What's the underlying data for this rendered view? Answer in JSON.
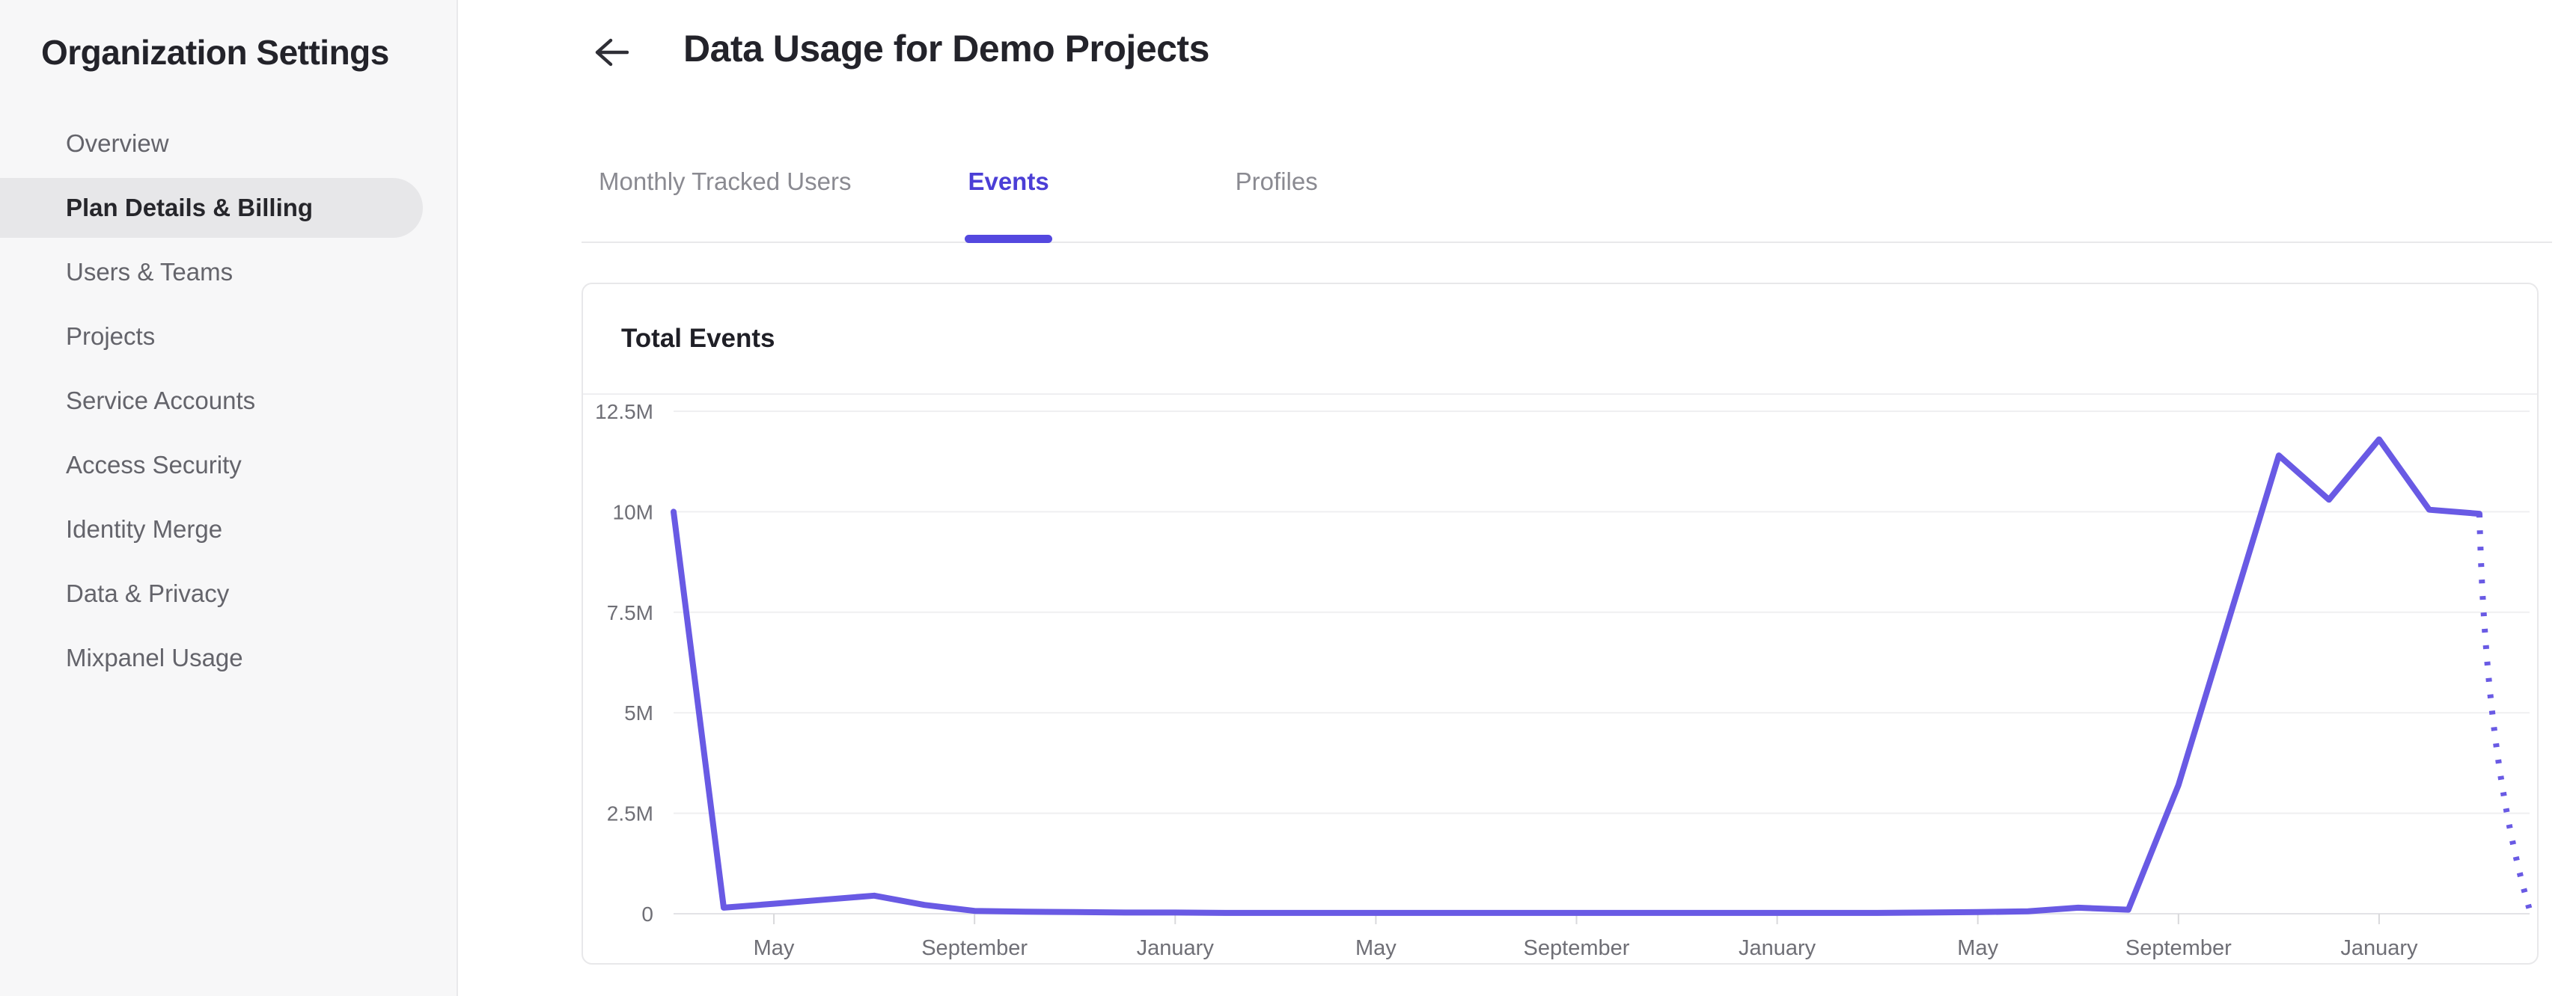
{
  "sidebar": {
    "title": "Organization Settings",
    "items": [
      {
        "label": "Overview",
        "selected": false
      },
      {
        "label": "Plan Details & Billing",
        "selected": true
      },
      {
        "label": "Users & Teams",
        "selected": false
      },
      {
        "label": "Projects",
        "selected": false
      },
      {
        "label": "Service Accounts",
        "selected": false
      },
      {
        "label": "Access Security",
        "selected": false
      },
      {
        "label": "Identity Merge",
        "selected": false
      },
      {
        "label": "Data & Privacy",
        "selected": false
      },
      {
        "label": "Mixpanel Usage",
        "selected": false
      }
    ]
  },
  "header": {
    "title": "Data Usage for Demo Projects"
  },
  "tabs": [
    {
      "label": "Monthly Tracked Users",
      "active": false
    },
    {
      "label": "Events",
      "active": true
    },
    {
      "label": "Profiles",
      "active": false
    }
  ],
  "card": {
    "title": "Total Events"
  },
  "colors": {
    "accent_purple": "#4b3ed6",
    "tab_indicator": "#5448df",
    "line_purple": "#695ae4",
    "gridline": "#efeff1",
    "axis_line": "#e3e3e6",
    "axis_label": "#6f6f76",
    "sidebar_bg": "#f7f7f8",
    "selected_item_bg": "#e7e7e9"
  },
  "chart_data": {
    "type": "line",
    "title": "Total Events",
    "xlabel": "",
    "ylabel": "",
    "unit": "events",
    "grid": "horizontal",
    "legend": "none",
    "ylim_millions": [
      0,
      12.5
    ],
    "y_ticks": [
      {
        "value_millions": 0,
        "label": "0"
      },
      {
        "value_millions": 2.5,
        "label": "2.5M"
      },
      {
        "value_millions": 5,
        "label": "5M"
      },
      {
        "value_millions": 7.5,
        "label": "7.5M"
      },
      {
        "value_millions": 10,
        "label": "10M"
      },
      {
        "value_millions": 12.5,
        "label": "12.5M"
      }
    ],
    "x_tick_indices": [
      2,
      6,
      10,
      14,
      18,
      22,
      26,
      30,
      34
    ],
    "x_tick_labels": [
      "May",
      "September",
      "January",
      "May",
      "September",
      "January",
      "May",
      "September",
      "January"
    ],
    "series": [
      {
        "name": "Total Events",
        "months": [
          "Mar",
          "Apr",
          "May",
          "Jun",
          "Jul",
          "Aug",
          "Sep",
          "Oct",
          "Nov",
          "Dec",
          "Jan",
          "Feb",
          "Mar",
          "Apr",
          "May",
          "Jun",
          "Jul",
          "Aug",
          "Sep",
          "Oct",
          "Nov",
          "Dec",
          "Jan",
          "Feb",
          "Mar",
          "Apr",
          "May",
          "Jun",
          "Jul",
          "Aug",
          "Sep",
          "Oct",
          "Nov",
          "Dec",
          "Jan",
          "Feb",
          "Mar",
          "Apr"
        ],
        "values_millions": [
          10,
          0.15,
          0.25,
          0.35,
          0.45,
          0.22,
          0.07,
          0.05,
          0.04,
          0.03,
          0.03,
          0.02,
          0.02,
          0.02,
          0.02,
          0.02,
          0.02,
          0.02,
          0.02,
          0.02,
          0.02,
          0.02,
          0.02,
          0.02,
          0.02,
          0.03,
          0.04,
          0.06,
          0.15,
          0.1,
          3.2,
          7.3,
          11.4,
          10.3,
          11.8,
          10.05,
          9.95
        ],
        "projected_value_millions": 0.1,
        "projected_style": "dotted"
      }
    ]
  }
}
